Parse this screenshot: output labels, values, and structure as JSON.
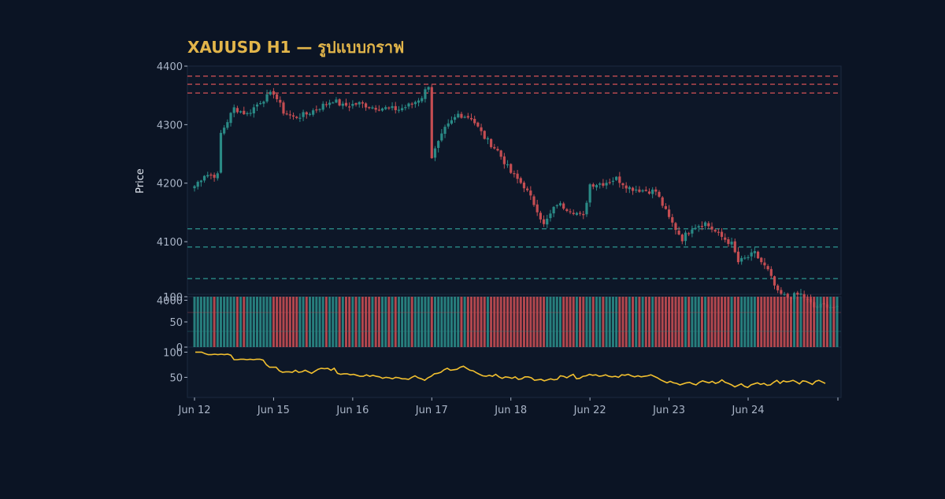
{
  "colors": {
    "background": "#0b1424",
    "panel": "#0d1728",
    "frame": "#1c2a40",
    "up": "#2a8a86",
    "down": "#c44d52",
    "resistance": "#c44d52",
    "support": "#2a8a86",
    "rsi_line": "#f2c02f",
    "title": "#e2b54a",
    "axis_text": "#a9b4c6"
  },
  "chart_data": {
    "type": "candlestick",
    "title": "XAUUSD H1 — รูปแบบกราฟ",
    "ylabel": "Price",
    "x_tick_labels": [
      "Jun 12",
      "Jun 15",
      "Jun 16",
      "Jun 17",
      "Jun 18",
      "Jun 22",
      "Jun 23",
      "Jun 24"
    ],
    "x_tick_bar_index": [
      0,
      24,
      48,
      72,
      96,
      120,
      144,
      168
    ],
    "bar_count": 196,
    "price_axis": {
      "ylim": [
        4010,
        4400
      ],
      "ticks": [
        4000,
        4100,
        4200,
        4300,
        4400
      ]
    },
    "horizontal_levels": {
      "resistance": [
        4383,
        4369,
        4354
      ],
      "support": [
        4122,
        4091,
        4037
      ]
    },
    "price_path_anchors": [
      [
        0,
        4195
      ],
      [
        3,
        4215
      ],
      [
        7,
        4213
      ],
      [
        8,
        4285
      ],
      [
        12,
        4328
      ],
      [
        16,
        4318
      ],
      [
        20,
        4340
      ],
      [
        24,
        4355
      ],
      [
        27,
        4322
      ],
      [
        30,
        4312
      ],
      [
        34,
        4318
      ],
      [
        38,
        4330
      ],
      [
        42,
        4342
      ],
      [
        45,
        4332
      ],
      [
        50,
        4336
      ],
      [
        54,
        4330
      ],
      [
        58,
        4328
      ],
      [
        62,
        4326
      ],
      [
        66,
        4335
      ],
      [
        69,
        4348
      ],
      [
        71,
        4368
      ],
      [
        72,
        4245
      ],
      [
        76,
        4292
      ],
      [
        80,
        4318
      ],
      [
        84,
        4312
      ],
      [
        88,
        4278
      ],
      [
        92,
        4255
      ],
      [
        96,
        4218
      ],
      [
        100,
        4195
      ],
      [
        104,
        4155
      ],
      [
        106,
        4128
      ],
      [
        110,
        4165
      ],
      [
        115,
        4152
      ],
      [
        118,
        4142
      ],
      [
        120,
        4198
      ],
      [
        124,
        4200
      ],
      [
        128,
        4208
      ],
      [
        132,
        4192
      ],
      [
        136,
        4188
      ],
      [
        140,
        4186
      ],
      [
        144,
        4140
      ],
      [
        148,
        4105
      ],
      [
        151,
        4125
      ],
      [
        155,
        4132
      ],
      [
        159,
        4112
      ],
      [
        163,
        4096
      ],
      [
        165,
        4065
      ],
      [
        170,
        4080
      ],
      [
        174,
        4050
      ],
      [
        177,
        4012
      ],
      [
        180,
        4005
      ],
      [
        184,
        4010
      ],
      [
        188,
        3988
      ],
      [
        192,
        3992
      ],
      [
        195,
        3985
      ]
    ],
    "volume_panel": {
      "ylim": [
        0,
        100
      ],
      "ticks": [
        0,
        50,
        100
      ],
      "bar_height_pct": 100
    },
    "rsi_panel": {
      "ylim": [
        10,
        110
      ],
      "ticks": [
        50,
        100
      ],
      "values": [
        100,
        100,
        100,
        97,
        95,
        95,
        96,
        95,
        96,
        95,
        96,
        94,
        85,
        85,
        86,
        86,
        85,
        86,
        85,
        86,
        86,
        84,
        75,
        70,
        70,
        70,
        63,
        60,
        61,
        61,
        60,
        64,
        60,
        61,
        64,
        61,
        58,
        62,
        66,
        68,
        67,
        68,
        64,
        68,
        58,
        56,
        57,
        57,
        55,
        56,
        54,
        52,
        52,
        55,
        52,
        54,
        52,
        51,
        48,
        50,
        49,
        47,
        50,
        49,
        47,
        47,
        46,
        50,
        53,
        49,
        47,
        44,
        49,
        52,
        57,
        58,
        60,
        65,
        68,
        64,
        65,
        66,
        70,
        72,
        68,
        64,
        63,
        59,
        56,
        53,
        52,
        54,
        52,
        56,
        51,
        48,
        51,
        50,
        48,
        51,
        46,
        47,
        51,
        51,
        49,
        44,
        45,
        46,
        43,
        45,
        47,
        45,
        46,
        53,
        52,
        49,
        53,
        56,
        47,
        48,
        52,
        53,
        56,
        54,
        55,
        52,
        53,
        55,
        52,
        51,
        52,
        50,
        55,
        54,
        56,
        53,
        51,
        53,
        51,
        52,
        53,
        55,
        52,
        49,
        45,
        42,
        39,
        42,
        39,
        38,
        35,
        37,
        39,
        40,
        37,
        35,
        40,
        43,
        41,
        39,
        42,
        38,
        40,
        45,
        40,
        38,
        35,
        31,
        34,
        37,
        32,
        30,
        35,
        37,
        39,
        36,
        38,
        34,
        35,
        40,
        44,
        38,
        43,
        41,
        42,
        44,
        41,
        37,
        43,
        42,
        39,
        36,
        42,
        44,
        41,
        38
      ]
    }
  }
}
